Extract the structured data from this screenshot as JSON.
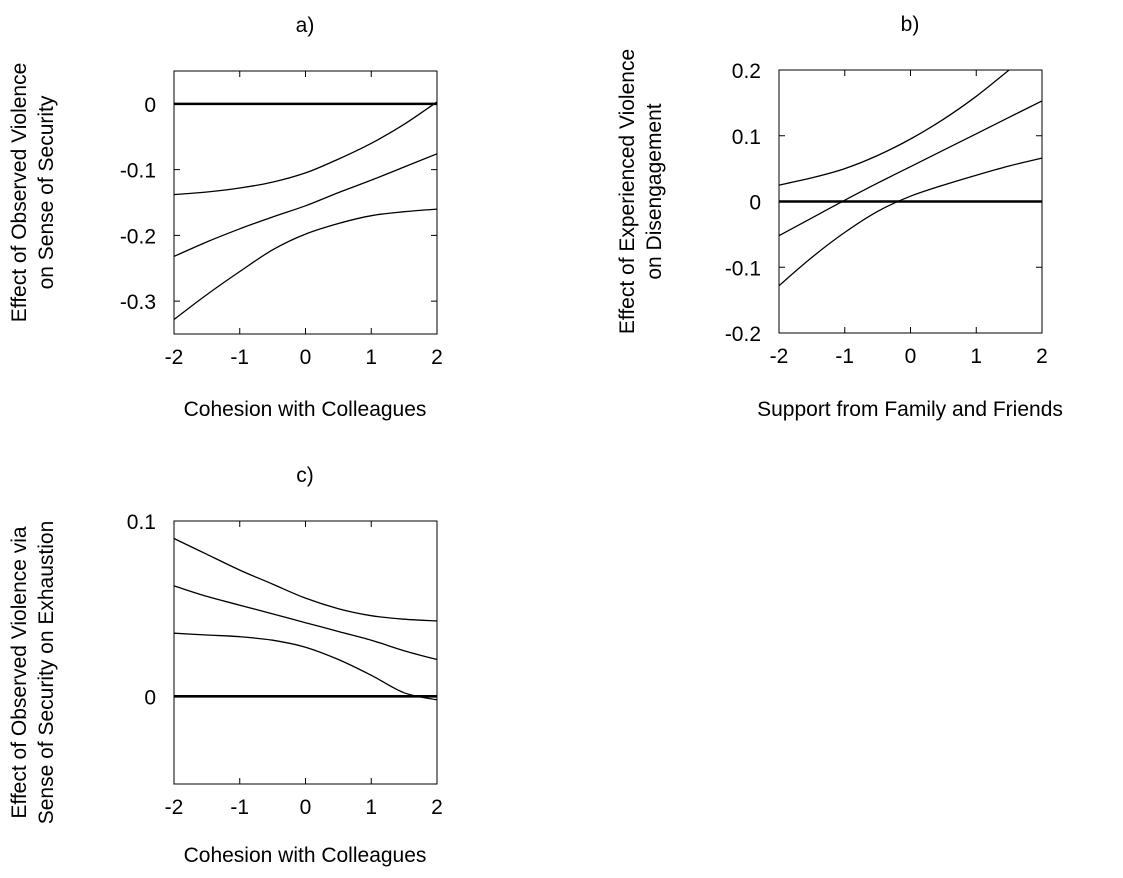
{
  "chart_data": [
    {
      "type": "line",
      "panel_label": "a)",
      "xlabel": "Cohesion with Colleagues",
      "ylabel": [
        "Effect of Observed Violence",
        "on Sense of Security"
      ],
      "xlim": [
        -2,
        2
      ],
      "ylim": [
        -0.35,
        0.05
      ],
      "x_ticks": [
        -2,
        -1,
        0,
        1,
        2
      ],
      "y_ticks": [
        -0.3,
        -0.2,
        -0.1,
        0
      ],
      "x_tick_labels": [
        "-2",
        "-1",
        "0",
        "1",
        "2"
      ],
      "y_tick_labels": [
        "-0.3",
        "-0.2",
        "-0.1",
        "0"
      ],
      "reference_line": 0,
      "grid": false,
      "series": [
        {
          "role": "upper",
          "x": [
            -2,
            -1.5,
            -1,
            -0.5,
            0,
            0.5,
            1,
            1.5,
            2
          ],
          "y": [
            -0.138,
            -0.134,
            -0.128,
            -0.119,
            -0.105,
            -0.084,
            -0.06,
            -0.031,
            0.003
          ]
        },
        {
          "role": "estimate",
          "x": [
            -2,
            -1.5,
            -1,
            -0.5,
            0,
            0.5,
            1,
            1.5,
            2
          ],
          "y": [
            -0.232,
            -0.21,
            -0.19,
            -0.172,
            -0.155,
            -0.135,
            -0.116,
            -0.096,
            -0.076
          ]
        },
        {
          "role": "lower",
          "x": [
            -2,
            -1.5,
            -1,
            -0.5,
            0,
            0.5,
            1,
            1.5,
            2
          ],
          "y": [
            -0.328,
            -0.29,
            -0.255,
            -0.222,
            -0.198,
            -0.182,
            -0.17,
            -0.164,
            -0.16
          ]
        }
      ]
    },
    {
      "type": "line",
      "panel_label": "b)",
      "xlabel": "Support from Family and Friends",
      "ylabel": [
        "Effect of Experienced Violence",
        "on Disengagement"
      ],
      "xlim": [
        -2,
        2
      ],
      "ylim": [
        -0.2,
        0.2
      ],
      "x_ticks": [
        -2,
        -1,
        0,
        1,
        2
      ],
      "y_ticks": [
        -0.2,
        -0.1,
        0,
        0.1,
        0.2
      ],
      "x_tick_labels": [
        "-2",
        "-1",
        "0",
        "1",
        "2"
      ],
      "y_tick_labels": [
        "-0.2",
        "-0.1",
        "0",
        "0.1",
        "0.2"
      ],
      "reference_line": 0,
      "grid": false,
      "series": [
        {
          "role": "upper",
          "x": [
            -2,
            -1.5,
            -1,
            -0.5,
            0,
            0.5,
            1,
            1.5
          ],
          "y": [
            0.025,
            0.036,
            0.05,
            0.07,
            0.095,
            0.125,
            0.16,
            0.2
          ]
        },
        {
          "role": "estimate",
          "x": [
            -2,
            -1.5,
            -1,
            -0.5,
            0,
            0.5,
            1,
            1.5,
            2
          ],
          "y": [
            -0.052,
            -0.025,
            0.002,
            0.028,
            0.053,
            0.078,
            0.103,
            0.128,
            0.153
          ]
        },
        {
          "role": "lower",
          "x": [
            -2,
            -1.5,
            -1,
            -0.5,
            0,
            0.5,
            1,
            1.5,
            2
          ],
          "y": [
            -0.128,
            -0.085,
            -0.047,
            -0.015,
            0.008,
            0.025,
            0.04,
            0.054,
            0.066
          ]
        }
      ]
    },
    {
      "type": "line",
      "panel_label": "c)",
      "xlabel": "Cohesion with Colleagues",
      "ylabel": [
        "Effect of Observed Violence via",
        "Sense of Security on Exhaustion"
      ],
      "xlim": [
        -2,
        2
      ],
      "ylim": [
        -0.05,
        0.1
      ],
      "x_ticks": [
        -2,
        -1,
        0,
        1,
        2
      ],
      "y_ticks": [
        0,
        0.1
      ],
      "x_tick_labels": [
        "-2",
        "-1",
        "0",
        "1",
        "2"
      ],
      "y_tick_labels": [
        "0",
        "0.1"
      ],
      "reference_line": 0,
      "grid": false,
      "series": [
        {
          "role": "upper",
          "x": [
            -2,
            -1.5,
            -1,
            -0.5,
            0,
            0.5,
            1,
            1.5,
            2
          ],
          "y": [
            0.09,
            0.081,
            0.072,
            0.064,
            0.056,
            0.05,
            0.046,
            0.044,
            0.043
          ]
        },
        {
          "role": "estimate",
          "x": [
            -2,
            -1.5,
            -1,
            -0.5,
            0,
            0.5,
            1,
            1.5,
            2
          ],
          "y": [
            0.063,
            0.057,
            0.052,
            0.047,
            0.042,
            0.037,
            0.032,
            0.026,
            0.021
          ]
        },
        {
          "role": "lower",
          "x": [
            -2,
            -1.5,
            -1,
            -0.5,
            0,
            0.5,
            1,
            1.5,
            2
          ],
          "y": [
            0.036,
            0.035,
            0.034,
            0.032,
            0.028,
            0.021,
            0.012,
            0.002,
            -0.002
          ]
        }
      ]
    }
  ]
}
